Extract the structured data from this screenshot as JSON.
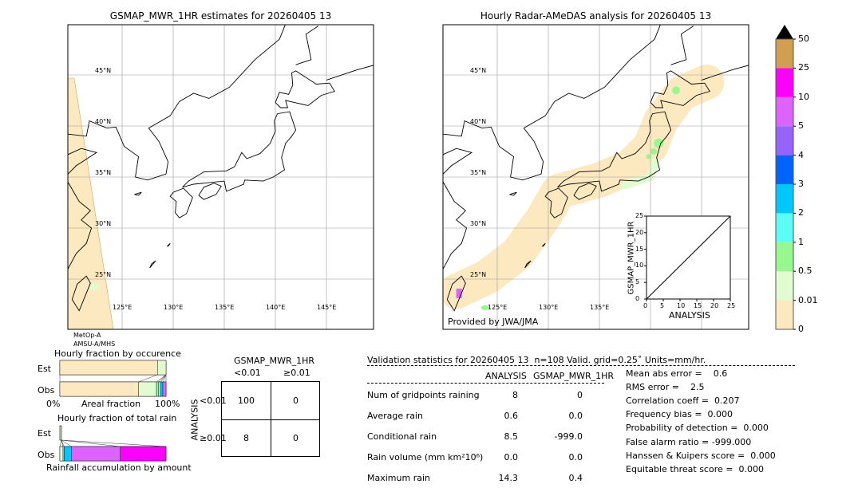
{
  "left_map": {
    "title": "GSMAP_MWR_1HR estimates for 20260405 13",
    "sensor_line1": "MetOp-A",
    "sensor_line2": "AMSU-A/MHS"
  },
  "right_map": {
    "title": "Hourly Radar-AMeDAS analysis for 20260405 13",
    "credit": "Provided by JWA/JMA"
  },
  "lat_labels": [
    "45°N",
    "40°N",
    "35°N",
    "30°N",
    "25°N"
  ],
  "lon_labels_left": [
    "125°E",
    "130°E",
    "135°E",
    "140°E",
    "145°E"
  ],
  "lon_labels_right": [
    "125°E",
    "130°E",
    "135°E"
  ],
  "colorbar": {
    "ticks": [
      "0",
      "0.01",
      "0.5",
      "1",
      "2",
      "3",
      "4",
      "5",
      "10",
      "25",
      "50"
    ],
    "colors": [
      "#fde9c0",
      "#e0fcd0",
      "#98f890",
      "#5cfcf8",
      "#00c8fc",
      "#0064fc",
      "#9664fc",
      "#dc64fc",
      "#fc00fc",
      "#d0a050"
    ],
    "extend_color": "#000000"
  },
  "chart_data": [
    {
      "type": "scatter",
      "xlabel": "ANALYSIS",
      "ylabel": "GSMAP_MWR_1HR",
      "xlim": [
        0,
        25
      ],
      "ylim": [
        0,
        25
      ],
      "ticks": [
        "0",
        "5",
        "10",
        "15",
        "20",
        "25"
      ],
      "xticks_minor": [
        "0",
        "2",
        "4",
        "6",
        "8",
        "10",
        "12",
        "14",
        "16",
        "18",
        "20",
        "22",
        "24"
      ],
      "diagonal": true
    },
    {
      "type": "bar",
      "title": "Hourly fraction by occurence",
      "xlabel": "Areal fraction",
      "xmin_label": "0%",
      "xmax_label": "100%",
      "categories": [
        "Est",
        "Obs"
      ],
      "series": [
        {
          "label": "Est",
          "fractions": [
            0.92,
            0.08
          ]
        },
        {
          "label": "Obs",
          "fractions": [
            0.74,
            0.17,
            0.02,
            0.02,
            0.02,
            0.03
          ]
        }
      ]
    },
    {
      "type": "bar",
      "title": "Hourly fraction of total rain",
      "xlabel": "Rainfall accumulation by amount",
      "categories": [
        "Est",
        "Obs"
      ],
      "series": [
        {
          "label": "Est",
          "fractions": [
            0.02
          ]
        },
        {
          "label": "Obs",
          "fractions": [
            0.03,
            0.01,
            0.07,
            0.46,
            0.43
          ]
        }
      ]
    }
  ],
  "contingency": {
    "title": "GSMAP_MWR_1HR",
    "col_labels": [
      "<0.01",
      "≥0.01"
    ],
    "row_axis": "ANALYSIS",
    "row_labels": [
      "<0.01",
      "≥0.01"
    ],
    "cells": [
      [
        "100",
        "0"
      ],
      [
        "8",
        "0"
      ]
    ]
  },
  "stats": {
    "header": "Validation statistics for 20260405 13  n=108 Valid. grid=0.25˚ Units=mm/hr.",
    "col_analysis": "ANALYSIS",
    "col_gsmap": "GSMAP_MWR_1HR",
    "rows": [
      {
        "label": "Num of gridpoints raining",
        "a": "8",
        "g": "0"
      },
      {
        "label": "Average rain",
        "a": "0.6",
        "g": "0.0"
      },
      {
        "label": "Conditional rain",
        "a": "8.5",
        "g": "-999.0"
      },
      {
        "label": "Rain volume (mm km²10⁶)",
        "a": "0.0",
        "g": "0.0"
      },
      {
        "label": "Maximum rain",
        "a": "14.3",
        "g": "0.4"
      }
    ],
    "scores": [
      "Mean abs error =    0.6",
      "RMS error =    2.5",
      "Correlation coeff =  0.207",
      "Frequency bias =  0.000",
      "Probability of detection =  0.000",
      "False alarm ratio = -999.000",
      "Hanssen & Kuipers score =  0.000",
      "Equitable threat score =  0.000"
    ]
  }
}
